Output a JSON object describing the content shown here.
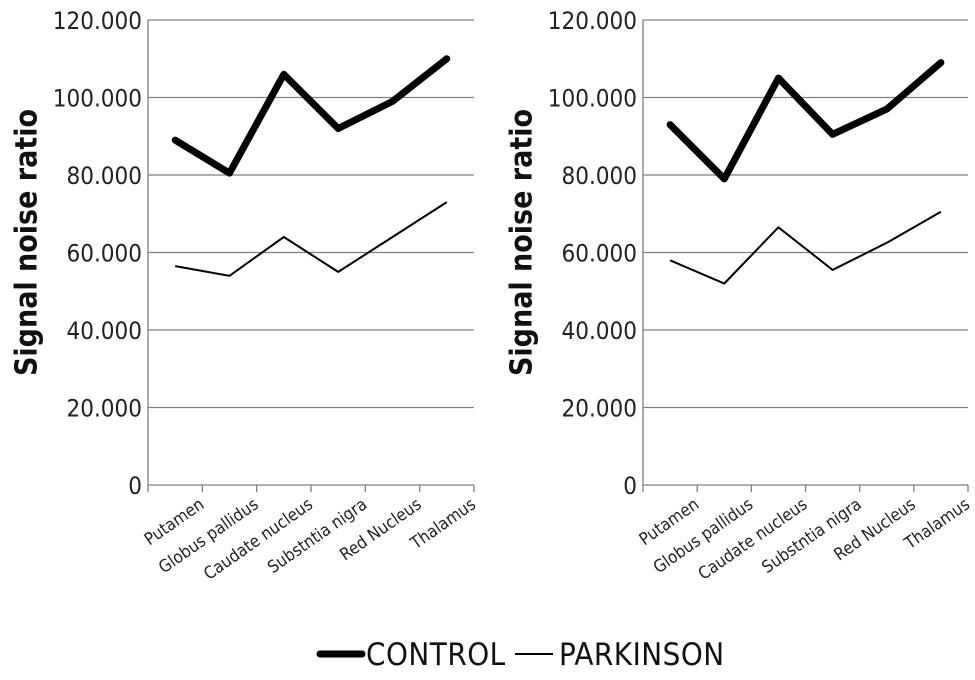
{
  "chart_data": [
    {
      "type": "line",
      "ylabel": "Signal noise ratio",
      "xlabel": "",
      "ylim": [
        0,
        120
      ],
      "yticks": [
        "0",
        "20.000",
        "40.000",
        "60.000",
        "80.000",
        "100.000",
        "120.000"
      ],
      "categories": [
        "Putamen",
        "Globus pallidus",
        "Caudate nucleus",
        "Substntia nigra",
        "Red Nucleus",
        "Thalamus"
      ],
      "grid": true,
      "series": [
        {
          "name": "CONTROL",
          "values": [
            89,
            80.5,
            106,
            92,
            99,
            110
          ]
        },
        {
          "name": "PARKINSON",
          "values": [
            56.5,
            54,
            64,
            55,
            64,
            73
          ]
        }
      ]
    },
    {
      "type": "line",
      "ylabel": "Signal noise ratio",
      "xlabel": "",
      "ylim": [
        0,
        120
      ],
      "yticks": [
        "0",
        "20.000",
        "40.000",
        "60.000",
        "80.000",
        "100.000",
        "120.000"
      ],
      "categories": [
        "Putamen",
        "Globus pallidus",
        "Caudate nucleus",
        "Substntia nigra",
        "Red Nucleus",
        "Thalamus"
      ],
      "grid": true,
      "series": [
        {
          "name": "CONTROL",
          "values": [
            93,
            79,
            105,
            90.5,
            97,
            109
          ]
        },
        {
          "name": "PARKINSON",
          "values": [
            58,
            52,
            66.5,
            55.5,
            62.5,
            70.5
          ]
        }
      ]
    }
  ],
  "legend": {
    "placement": "bottom",
    "items": [
      {
        "label": "CONTROL",
        "style": "thick"
      },
      {
        "label": "PARKINSON",
        "style": "thin"
      }
    ]
  },
  "colors": {
    "line": "#000000",
    "grid": "#7f7f7f"
  }
}
